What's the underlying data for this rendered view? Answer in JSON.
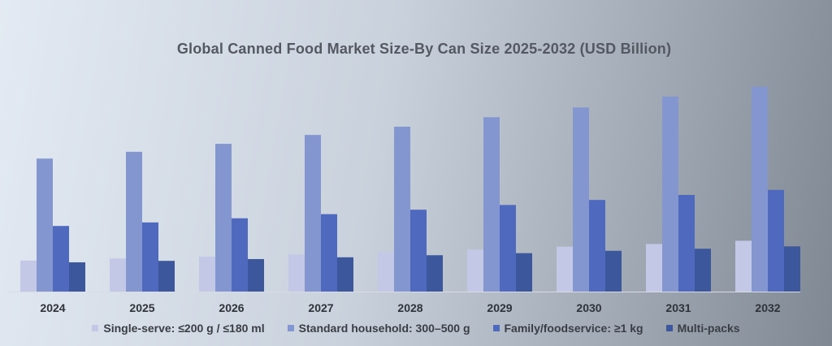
{
  "chart_data": {
    "type": "bar",
    "title": "Global Canned Food Market Size-By Can Size 2025-2032 (USD Billion)",
    "categories": [
      "2024",
      "2025",
      "2026",
      "2027",
      "2028",
      "2029",
      "2030",
      "2031",
      "2032"
    ],
    "series": [
      {
        "name": "Single-serve: ≤200 g / ≤180 ml",
        "color": "#c3c8e6",
        "values": [
          10.5,
          11.2,
          11.8,
          12.6,
          13.4,
          14.2,
          15.2,
          16.1,
          17.2
        ]
      },
      {
        "name": "Standard household: 300–500 g",
        "color": "#8496d0",
        "values": [
          45.0,
          47.3,
          50.0,
          53.0,
          55.8,
          59.0,
          62.3,
          66.0,
          69.3
        ]
      },
      {
        "name": "Family/foodservice: ≥1 kg",
        "color": "#4e69bd",
        "values": [
          22.2,
          23.4,
          24.8,
          26.2,
          27.7,
          29.3,
          31.0,
          32.7,
          34.4
        ]
      },
      {
        "name": "Multi-packs",
        "color": "#3d579c",
        "values": [
          9.9,
          10.4,
          11.0,
          11.6,
          12.3,
          13.0,
          13.8,
          14.5,
          15.3
        ]
      }
    ],
    "xlabel": "",
    "ylabel": "",
    "ylim": [
      0,
      72
    ],
    "grid": false,
    "legend": "bottom"
  }
}
